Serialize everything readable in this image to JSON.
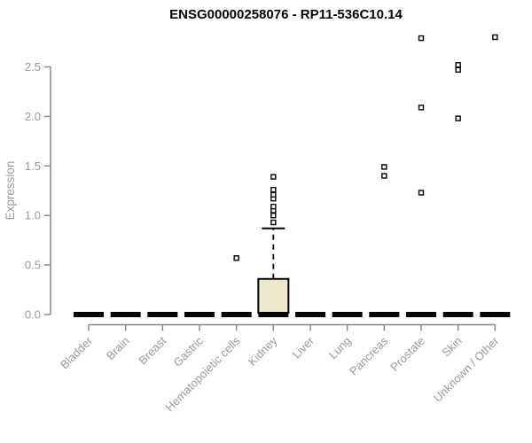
{
  "chart_data": {
    "type": "boxplot",
    "title": "ENSG00000258076 - RP11-536C10.14",
    "ylabel": "Expression",
    "xlabel": "",
    "ylim": [
      0,
      2.85
    ],
    "yticks": [
      "0.0",
      "0.5",
      "1.0",
      "1.5",
      "2.0",
      "2.5"
    ],
    "ytick_values": [
      0.0,
      0.5,
      1.0,
      1.5,
      2.0,
      2.5
    ],
    "grid": false,
    "legend": null,
    "categories": [
      "Bladder",
      "Brain",
      "Breast",
      "Gastric",
      "Hematopoietic cells",
      "Kidney",
      "Liver",
      "Lung",
      "Pancreas",
      "Prostate",
      "Skin",
      "Unknown / Other"
    ],
    "series": [
      {
        "category": "Bladder",
        "median": 0,
        "q1": 0,
        "q3": 0,
        "whisker_low": 0,
        "whisker_high": 0,
        "outliers": []
      },
      {
        "category": "Brain",
        "median": 0,
        "q1": 0,
        "q3": 0,
        "whisker_low": 0,
        "whisker_high": 0,
        "outliers": []
      },
      {
        "category": "Breast",
        "median": 0,
        "q1": 0,
        "q3": 0,
        "whisker_low": 0,
        "whisker_high": 0,
        "outliers": []
      },
      {
        "category": "Gastric",
        "median": 0,
        "q1": 0,
        "q3": 0,
        "whisker_low": 0,
        "whisker_high": 0,
        "outliers": []
      },
      {
        "category": "Hematopoietic cells",
        "median": 0,
        "q1": 0,
        "q3": 0,
        "whisker_low": 0,
        "whisker_high": 0,
        "outliers": [
          0.57
        ]
      },
      {
        "category": "Kidney",
        "median": 0,
        "q1": 0,
        "q3": 0.36,
        "whisker_low": 0,
        "whisker_high": 0.87,
        "outliers": [
          0.93,
          1.0,
          1.05,
          1.09,
          1.17,
          1.21,
          1.26,
          1.39
        ]
      },
      {
        "category": "Liver",
        "median": 0,
        "q1": 0,
        "q3": 0,
        "whisker_low": 0,
        "whisker_high": 0,
        "outliers": []
      },
      {
        "category": "Lung",
        "median": 0,
        "q1": 0,
        "q3": 0,
        "whisker_low": 0,
        "whisker_high": 0,
        "outliers": []
      },
      {
        "category": "Pancreas",
        "median": 0,
        "q1": 0,
        "q3": 0,
        "whisker_low": 0,
        "whisker_high": 0,
        "outliers": [
          1.4,
          1.49
        ]
      },
      {
        "category": "Prostate",
        "median": 0,
        "q1": 0,
        "q3": 0,
        "whisker_low": 0,
        "whisker_high": 0,
        "outliers": [
          1.23,
          2.09,
          2.79
        ]
      },
      {
        "category": "Skin",
        "median": 0,
        "q1": 0,
        "q3": 0,
        "whisker_low": 0,
        "whisker_high": 0,
        "outliers": [
          1.98,
          2.47,
          2.52
        ]
      },
      {
        "category": "Unknown / Other",
        "median": 0,
        "q1": 0,
        "q3": 0,
        "whisker_low": 0,
        "whisker_high": 0,
        "outliers": [
          2.8
        ]
      }
    ],
    "colors": {
      "box_fill": "#ECE7CD",
      "box_border": "#000000",
      "median": "#000000",
      "outlier_stroke": "#000000",
      "outlier_fill": "#ffffff",
      "axis_line": "#888888",
      "tick_label": "#999999",
      "title": "#000000",
      "background": "#ffffff"
    }
  }
}
